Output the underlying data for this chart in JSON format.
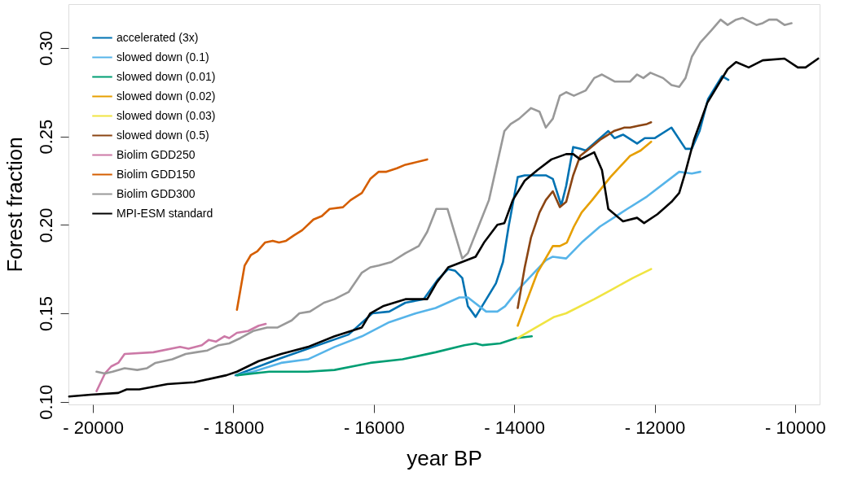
{
  "chart_data": {
    "type": "line",
    "xlabel": "year BP",
    "ylabel": "Forest fraction",
    "xlim": [
      -20350,
      -9650
    ],
    "ylim": [
      0.0985,
      0.3248
    ],
    "xticks": [
      {
        "value": -20000,
        "label": "- 20000"
      },
      {
        "value": -18000,
        "label": "- 18000"
      },
      {
        "value": -16000,
        "label": "- 16000"
      },
      {
        "value": -14000,
        "label": "- 14000"
      },
      {
        "value": -12000,
        "label": "- 12000"
      },
      {
        "value": -10000,
        "label": "- 10000"
      }
    ],
    "yticks": [
      {
        "value": 0.1,
        "label": "0.10"
      },
      {
        "value": 0.15,
        "label": "0.15"
      },
      {
        "value": 0.2,
        "label": "0.20"
      },
      {
        "value": 0.25,
        "label": "0.25"
      },
      {
        "value": 0.3,
        "label": "0.30"
      }
    ],
    "grid": false,
    "legend": "top left",
    "marker": "none",
    "line_style": "solid",
    "series": [
      {
        "name": "accelerated (3x)",
        "color": "#0072b2",
        "x": [
          -17970,
          -17370,
          -16360,
          -16020,
          -15780,
          -15550,
          -15290,
          -15090,
          -14940,
          -14840,
          -14740,
          -14660,
          -14550,
          -14260,
          -14160,
          -14080,
          -13950,
          -13850,
          -13550,
          -13450,
          -13330,
          -13260,
          -13160,
          -13060,
          -12980,
          -12660,
          -12570,
          -12450,
          -12250,
          -12140,
          -12000,
          -11760,
          -11560,
          -11470,
          -11360,
          -11240,
          -11040,
          -10950
        ],
        "values": [
          0.115,
          0.124,
          0.138,
          0.15,
          0.151,
          0.156,
          0.158,
          0.169,
          0.175,
          0.174,
          0.17,
          0.154,
          0.148,
          0.167,
          0.179,
          0.199,
          0.227,
          0.228,
          0.228,
          0.226,
          0.211,
          0.222,
          0.244,
          0.243,
          0.242,
          0.253,
          0.249,
          0.251,
          0.246,
          0.249,
          0.249,
          0.255,
          0.243,
          0.243,
          0.253,
          0.271,
          0.284,
          0.282
        ]
      },
      {
        "name": "slowed down (0.1)",
        "color": "#56b4e9",
        "x": [
          -17950,
          -17720,
          -17320,
          -16940,
          -16560,
          -16170,
          -15780,
          -15400,
          -15120,
          -14780,
          -14660,
          -14400,
          -14240,
          -14130,
          -13930,
          -13550,
          -13450,
          -13260,
          -13040,
          -12780,
          -12390,
          -12110,
          -11650,
          -11470,
          -11350
        ],
        "values": [
          0.115,
          0.117,
          0.122,
          0.124,
          0.131,
          0.137,
          0.145,
          0.15,
          0.153,
          0.159,
          0.159,
          0.151,
          0.151,
          0.154,
          0.164,
          0.18,
          0.182,
          0.181,
          0.19,
          0.199,
          0.209,
          0.216,
          0.23,
          0.229,
          0.23
        ]
      },
      {
        "name": "slowed down (0.01)",
        "color": "#009e73",
        "x": [
          -17950,
          -17490,
          -16940,
          -16560,
          -16170,
          -16050,
          -15590,
          -15120,
          -14710,
          -14550,
          -14450,
          -14200,
          -13970,
          -13750
        ],
        "values": [
          0.115,
          0.117,
          0.117,
          0.118,
          0.121,
          0.122,
          0.124,
          0.128,
          0.132,
          0.133,
          0.132,
          0.133,
          0.136,
          0.137
        ]
      },
      {
        "name": "slowed down (0.02)",
        "color": "#e69f00",
        "x": [
          -13950,
          -13850,
          -13670,
          -13450,
          -13350,
          -13250,
          -13150,
          -13040,
          -12890,
          -12630,
          -12350,
          -12200,
          -12050
        ],
        "values": [
          0.143,
          0.154,
          0.173,
          0.188,
          0.188,
          0.19,
          0.199,
          0.207,
          0.214,
          0.227,
          0.239,
          0.242,
          0.247
        ]
      },
      {
        "name": "slowed down (0.03)",
        "color": "#f0e442",
        "x": [
          -13950,
          -13430,
          -13260,
          -12860,
          -12630,
          -12310,
          -12050
        ],
        "values": [
          0.136,
          0.148,
          0.15,
          0.158,
          0.163,
          0.17,
          0.175
        ]
      },
      {
        "name": "slowed down (0.5)",
        "color": "#8b4513",
        "x": [
          -13950,
          -13850,
          -13760,
          -13640,
          -13550,
          -13450,
          -13350,
          -13260,
          -13160,
          -13060,
          -12930,
          -12780,
          -12580,
          -12430,
          -12350,
          -12230,
          -12110,
          -12050
        ],
        "values": [
          0.153,
          0.176,
          0.193,
          0.207,
          0.214,
          0.219,
          0.21,
          0.213,
          0.228,
          0.239,
          0.243,
          0.248,
          0.253,
          0.255,
          0.255,
          0.256,
          0.257,
          0.258
        ]
      },
      {
        "name": "Biolim GDD250",
        "color": "#cc79a7",
        "x": [
          -19950,
          -19830,
          -19740,
          -19640,
          -19550,
          -19140,
          -18760,
          -18640,
          -18450,
          -18350,
          -18250,
          -18130,
          -18060,
          -17950,
          -17790,
          -17640,
          -17540
        ],
        "values": [
          0.106,
          0.116,
          0.12,
          0.122,
          0.127,
          0.128,
          0.131,
          0.13,
          0.132,
          0.135,
          0.134,
          0.137,
          0.136,
          0.139,
          0.14,
          0.143,
          0.144
        ]
      },
      {
        "name": "Biolim GDD150",
        "color": "#d55e00",
        "x": [
          -17950,
          -17840,
          -17750,
          -17660,
          -17550,
          -17440,
          -17350,
          -17250,
          -17140,
          -17020,
          -16860,
          -16740,
          -16630,
          -16440,
          -16330,
          -16170,
          -16050,
          -15930,
          -15820,
          -15670,
          -15550,
          -15440,
          -15240
        ],
        "values": [
          0.152,
          0.177,
          0.183,
          0.185,
          0.19,
          0.191,
          0.19,
          0.191,
          0.194,
          0.197,
          0.203,
          0.205,
          0.209,
          0.21,
          0.214,
          0.218,
          0.226,
          0.23,
          0.23,
          0.232,
          0.234,
          0.235,
          0.237
        ]
      },
      {
        "name": "Biolim GDD300",
        "color": "#999999",
        "x": [
          -19950,
          -19830,
          -19720,
          -19550,
          -19370,
          -19230,
          -19110,
          -18870,
          -18680,
          -18530,
          -18370,
          -18210,
          -18060,
          -17900,
          -17720,
          -17520,
          -17370,
          -17170,
          -17060,
          -16910,
          -16710,
          -16560,
          -16360,
          -16170,
          -16050,
          -15930,
          -15750,
          -15550,
          -15360,
          -15240,
          -15110,
          -14950,
          -14740,
          -14660,
          -14590,
          -14510,
          -14360,
          -14140,
          -14050,
          -13930,
          -13760,
          -13640,
          -13550,
          -13450,
          -13350,
          -13260,
          -13150,
          -12980,
          -12860,
          -12750,
          -12570,
          -12350,
          -12250,
          -12160,
          -12060,
          -11880,
          -11760,
          -11650,
          -11560,
          -11470,
          -11350,
          -11190,
          -11060,
          -10960,
          -10840,
          -10750,
          -10550,
          -10460,
          -10370,
          -10260,
          -10150,
          -10050
        ],
        "values": [
          0.117,
          0.116,
          0.117,
          0.119,
          0.118,
          0.119,
          0.122,
          0.124,
          0.127,
          0.128,
          0.129,
          0.132,
          0.133,
          0.136,
          0.14,
          0.142,
          0.142,
          0.146,
          0.15,
          0.151,
          0.156,
          0.158,
          0.162,
          0.173,
          0.176,
          0.177,
          0.179,
          0.184,
          0.188,
          0.196,
          0.209,
          0.209,
          0.181,
          0.184,
          0.191,
          0.199,
          0.214,
          0.253,
          0.257,
          0.26,
          0.266,
          0.264,
          0.255,
          0.26,
          0.273,
          0.275,
          0.273,
          0.276,
          0.283,
          0.285,
          0.281,
          0.281,
          0.285,
          0.283,
          0.286,
          0.283,
          0.279,
          0.278,
          0.283,
          0.295,
          0.303,
          0.31,
          0.316,
          0.313,
          0.316,
          0.317,
          0.313,
          0.314,
          0.316,
          0.316,
          0.313,
          0.314
        ]
      },
      {
        "name": "MPI-ESM standard",
        "color": "#000000",
        "x": [
          -20340,
          -20030,
          -19640,
          -19520,
          -19340,
          -18940,
          -18560,
          -18100,
          -17950,
          -17640,
          -17320,
          -16940,
          -16560,
          -16170,
          -16050,
          -15870,
          -15550,
          -15240,
          -15110,
          -14940,
          -14550,
          -14430,
          -14240,
          -14140,
          -14020,
          -13850,
          -13670,
          -13470,
          -13260,
          -13160,
          -13060,
          -12860,
          -12750,
          -12660,
          -12450,
          -12250,
          -12150,
          -11960,
          -11760,
          -11650,
          -11560,
          -11440,
          -11250,
          -10960,
          -10840,
          -10660,
          -10460,
          -10150,
          -9960,
          -9850,
          -9670
        ],
        "values": [
          0.103,
          0.104,
          0.105,
          0.107,
          0.107,
          0.11,
          0.111,
          0.115,
          0.117,
          0.123,
          0.127,
          0.131,
          0.137,
          0.142,
          0.15,
          0.154,
          0.158,
          0.158,
          0.167,
          0.176,
          0.182,
          0.19,
          0.2,
          0.201,
          0.214,
          0.225,
          0.231,
          0.237,
          0.24,
          0.24,
          0.237,
          0.241,
          0.231,
          0.209,
          0.202,
          0.204,
          0.201,
          0.206,
          0.213,
          0.218,
          0.23,
          0.248,
          0.269,
          0.288,
          0.292,
          0.289,
          0.293,
          0.294,
          0.289,
          0.289,
          0.294
        ]
      }
    ]
  }
}
